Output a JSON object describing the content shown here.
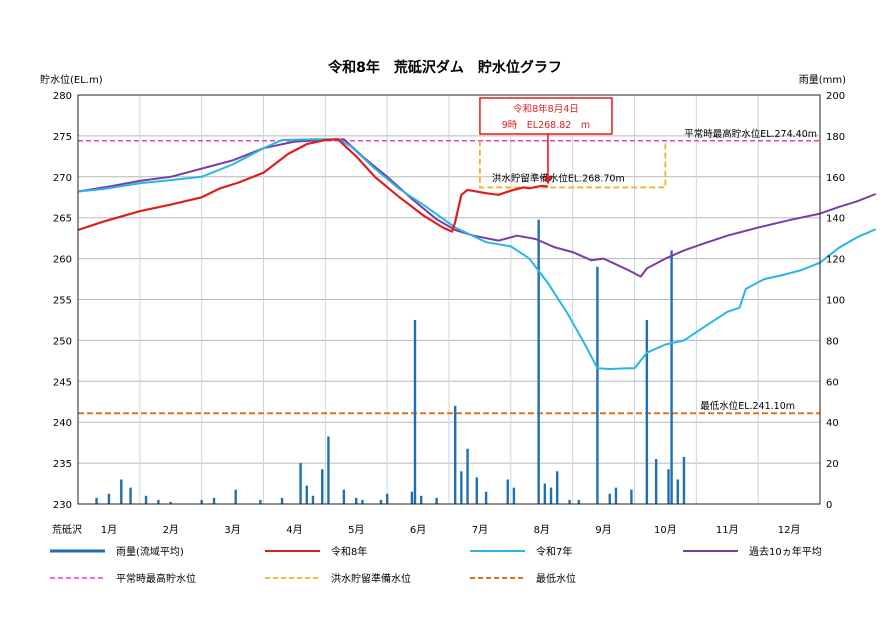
{
  "chart_data": {
    "type": "line",
    "title": "令和8年　荒砥沢ダム　貯水位グラフ",
    "ylabel_left": "貯水位(EL.m)",
    "ylabel_right": "雨量(mm)",
    "x_corner_label": "荒砥沢",
    "months": [
      "1月",
      "2月",
      "3月",
      "4月",
      "5月",
      "6月",
      "7月",
      "8月",
      "9月",
      "10月",
      "11月",
      "12月"
    ],
    "ylim_left": [
      230,
      280
    ],
    "yticks_left": [
      230,
      235,
      240,
      245,
      250,
      255,
      260,
      265,
      270,
      275,
      280
    ],
    "ylim_right": [
      0,
      200
    ],
    "yticks_right": [
      0,
      20,
      40,
      60,
      80,
      100,
      120,
      140,
      160,
      180,
      200
    ],
    "grid": true,
    "colors": {
      "rain": "#1f6fb5",
      "r8": "#e01e1e",
      "r7": "#29b6e6",
      "avg": "#7a3ea1",
      "normal_max": "#e040c8",
      "flood": "#f0b429",
      "min": "#e8701a",
      "callout_border": "#e01e1e",
      "callout_text": "#e01e1e"
    },
    "reference_lines": {
      "normal_max": {
        "value": 274.4,
        "label": "平常時最高貯水位EL.274.40m"
      },
      "flood_prep": {
        "value": 268.7,
        "label": "洪水貯留準備水位EL.268.70m",
        "from_month": 6.5,
        "to_month": 9.5,
        "step_top": 274.4
      },
      "min": {
        "value": 241.1,
        "label": "最低水位EL.241.10m"
      }
    },
    "callout": {
      "line1": "令和8年8月4日",
      "line2": "9時　EL268.82　m",
      "x_month": 7.6,
      "y": 268.82
    },
    "series": [
      {
        "key": "r8",
        "points": [
          [
            0,
            263.5
          ],
          [
            0.4,
            264.5
          ],
          [
            1,
            265.8
          ],
          [
            1.5,
            266.6
          ],
          [
            2,
            267.5
          ],
          [
            2.3,
            268.6
          ],
          [
            2.6,
            269.3
          ],
          [
            3,
            270.5
          ],
          [
            3.4,
            272.8
          ],
          [
            3.7,
            274
          ],
          [
            4,
            274.5
          ],
          [
            4.2,
            274.6
          ],
          [
            4.5,
            272.5
          ],
          [
            4.8,
            270
          ],
          [
            5.2,
            267.5
          ],
          [
            5.6,
            265.2
          ],
          [
            5.9,
            263.8
          ],
          [
            6.05,
            263.3
          ],
          [
            6.1,
            264.5
          ],
          [
            6.2,
            267.8
          ],
          [
            6.3,
            268.4
          ],
          [
            6.6,
            268
          ],
          [
            6.8,
            267.8
          ],
          [
            7,
            268.3
          ],
          [
            7.2,
            268.7
          ],
          [
            7.3,
            268.6
          ],
          [
            7.5,
            268.9
          ],
          [
            7.6,
            268.82
          ]
        ]
      },
      {
        "key": "r7",
        "points": [
          [
            0,
            268.2
          ],
          [
            0.4,
            268.5
          ],
          [
            1,
            269.2
          ],
          [
            1.5,
            269.6
          ],
          [
            2,
            270
          ],
          [
            2.5,
            271.5
          ],
          [
            3,
            273.5
          ],
          [
            3.3,
            274.5
          ],
          [
            3.8,
            274.6
          ],
          [
            4.2,
            274.6
          ],
          [
            4.4,
            273.8
          ],
          [
            4.8,
            271
          ],
          [
            5.2,
            268.5
          ],
          [
            5.6,
            266.5
          ],
          [
            6.1,
            263.8
          ],
          [
            6.6,
            262
          ],
          [
            7,
            261.5
          ],
          [
            7.3,
            260
          ],
          [
            7.6,
            257
          ],
          [
            7.9,
            253.5
          ],
          [
            8.2,
            249.5
          ],
          [
            8.4,
            246.6
          ],
          [
            8.6,
            246.5
          ],
          [
            8.9,
            246.6
          ],
          [
            9,
            246.6
          ],
          [
            9.2,
            248.5
          ],
          [
            9.5,
            249.5
          ],
          [
            9.8,
            250
          ],
          [
            10,
            251
          ],
          [
            10.3,
            252.5
          ],
          [
            10.5,
            253.5
          ],
          [
            10.7,
            254
          ],
          [
            10.8,
            256.3
          ],
          [
            11.1,
            257.5
          ],
          [
            11.4,
            258
          ],
          [
            11.7,
            258.6
          ],
          [
            12,
            259.5
          ],
          [
            12.3,
            261.3
          ],
          [
            12.6,
            262.6
          ],
          [
            12.9,
            263.6
          ]
        ]
      },
      {
        "key": "avg",
        "points": [
          [
            0,
            268.2
          ],
          [
            0.5,
            268.8
          ],
          [
            1,
            269.5
          ],
          [
            1.5,
            270
          ],
          [
            2,
            271
          ],
          [
            2.5,
            272
          ],
          [
            3,
            273.5
          ],
          [
            3.5,
            274.3
          ],
          [
            4,
            274.5
          ],
          [
            4.3,
            274.6
          ],
          [
            4.6,
            272.5
          ],
          [
            5,
            270
          ],
          [
            5.4,
            267.3
          ],
          [
            5.8,
            264.8
          ],
          [
            6.1,
            263.5
          ],
          [
            6.4,
            262.8
          ],
          [
            6.8,
            262.2
          ],
          [
            7.1,
            262.8
          ],
          [
            7.4,
            262.4
          ],
          [
            7.7,
            261.4
          ],
          [
            8,
            260.8
          ],
          [
            8.3,
            259.8
          ],
          [
            8.5,
            260
          ],
          [
            8.7,
            259.3
          ],
          [
            8.9,
            258.6
          ],
          [
            9.1,
            257.8
          ],
          [
            9.2,
            258.8
          ],
          [
            9.5,
            260
          ],
          [
            9.8,
            261
          ],
          [
            10.1,
            261.8
          ],
          [
            10.5,
            262.8
          ],
          [
            11,
            263.8
          ],
          [
            11.5,
            264.7
          ],
          [
            12,
            265.5
          ],
          [
            12.3,
            266.3
          ],
          [
            12.6,
            267
          ],
          [
            12.9,
            267.9
          ]
        ]
      },
      {
        "key": "rain",
        "type": "bar",
        "bars": [
          [
            0.3,
            3
          ],
          [
            0.5,
            5
          ],
          [
            0.7,
            12
          ],
          [
            0.85,
            8
          ],
          [
            1.1,
            4
          ],
          [
            1.3,
            2
          ],
          [
            1.5,
            1
          ],
          [
            2.0,
            2
          ],
          [
            2.2,
            3
          ],
          [
            2.55,
            7
          ],
          [
            2.95,
            2
          ],
          [
            3.3,
            3
          ],
          [
            3.6,
            20
          ],
          [
            3.7,
            9
          ],
          [
            3.8,
            4
          ],
          [
            3.95,
            17
          ],
          [
            4.05,
            33
          ],
          [
            4.3,
            7
          ],
          [
            4.5,
            3
          ],
          [
            4.6,
            2
          ],
          [
            4.9,
            2
          ],
          [
            5.0,
            5
          ],
          [
            5.4,
            6
          ],
          [
            5.45,
            90
          ],
          [
            5.55,
            4
          ],
          [
            5.8,
            3
          ],
          [
            6.1,
            48
          ],
          [
            6.2,
            16
          ],
          [
            6.3,
            27
          ],
          [
            6.45,
            13
          ],
          [
            6.6,
            6
          ],
          [
            6.95,
            12
          ],
          [
            7.05,
            8
          ],
          [
            7.45,
            139
          ],
          [
            7.55,
            10
          ],
          [
            7.65,
            8
          ],
          [
            7.75,
            16
          ],
          [
            7.95,
            2
          ],
          [
            8.1,
            2
          ],
          [
            8.4,
            116
          ],
          [
            8.6,
            5
          ],
          [
            8.7,
            8
          ],
          [
            8.95,
            7
          ],
          [
            9.2,
            90
          ],
          [
            9.35,
            22
          ],
          [
            9.55,
            17
          ],
          [
            9.6,
            124
          ],
          [
            9.7,
            12
          ],
          [
            9.8,
            23
          ]
        ]
      }
    ],
    "legend": [
      {
        "key": "rain",
        "label": "雨量(流域平均)"
      },
      {
        "key": "r8",
        "label": "令和8年"
      },
      {
        "key": "r7",
        "label": "令和7年"
      },
      {
        "key": "avg",
        "label": "過去10ヵ年平均"
      },
      {
        "key": "normal_max",
        "label": "平常時最高貯水位"
      },
      {
        "key": "flood",
        "label": "洪水貯留準備水位"
      },
      {
        "key": "min",
        "label": "最低水位"
      }
    ]
  }
}
